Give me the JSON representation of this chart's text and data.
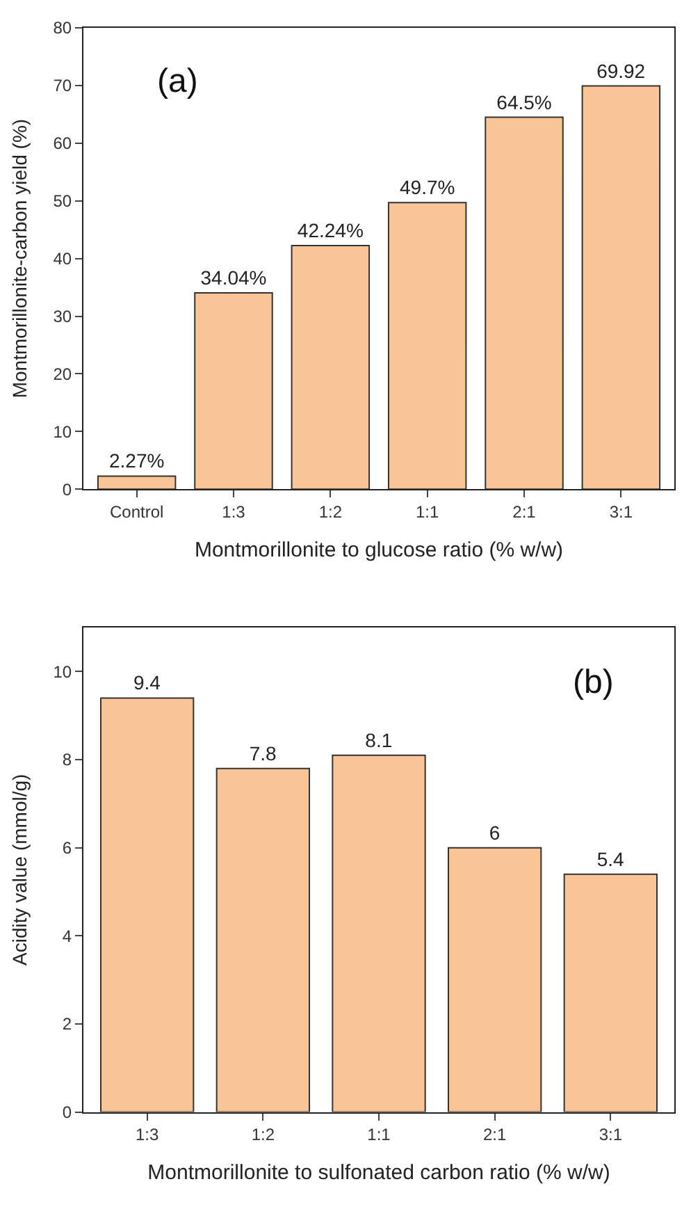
{
  "chart_data": [
    {
      "type": "bar",
      "categories": [
        "Control",
        "1:3",
        "1:2",
        "1:1",
        "2:1",
        "3:1"
      ],
      "values": [
        2.27,
        34.04,
        42.24,
        49.7,
        64.5,
        69.92
      ],
      "value_labels": [
        "2.27%",
        "34.04%",
        "42.24%",
        "49.7%",
        "64.5%",
        "69.92"
      ],
      "color": "#f9c596",
      "xlabel": "Montmorillonite to glucose ratio (% w/w)",
      "ylabel": "Montmorillonite-carbon yield (%)",
      "ylim": [
        0,
        80
      ],
      "yticks": [
        0,
        10,
        20,
        30,
        40,
        50,
        60,
        70,
        80
      ],
      "annotations": [
        "(a)"
      ]
    },
    {
      "type": "bar",
      "categories": [
        "1:3",
        "1:2",
        "1:1",
        "2:1",
        "3:1"
      ],
      "values": [
        9.4,
        7.8,
        8.1,
        6,
        5.4
      ],
      "data_labels": true,
      "color": "#f9c596",
      "xlabel": "Montmorillonite to sulfonated carbon ratio (% w/w)",
      "ylabel": "Acidity value (mmol/g)",
      "ylim": [
        0,
        11
      ],
      "yticks": [
        0,
        2,
        4,
        6,
        8,
        10
      ],
      "annotations": [
        "(b)"
      ]
    }
  ]
}
